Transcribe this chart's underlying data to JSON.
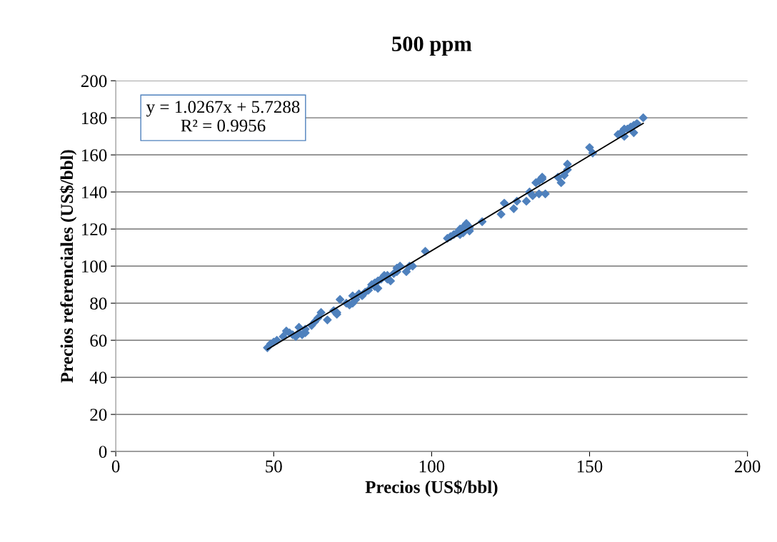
{
  "chart_data": {
    "type": "scatter",
    "title": "500 ppm",
    "xlabel": "Precios (US$/bbl)",
    "ylabel": "Precios referenciales (US$/bbl)",
    "xlim": [
      0,
      200
    ],
    "xticks": [
      0,
      50,
      100,
      150,
      200
    ],
    "ylim": [
      0,
      200
    ],
    "yticks": [
      0,
      20,
      40,
      60,
      80,
      100,
      120,
      140,
      160,
      180,
      200
    ],
    "grid": "y",
    "legend": false,
    "marker": "diamond",
    "annotations": [
      "y = 1.0267x + 5.7288\nR² = 0.9956"
    ],
    "series": [
      {
        "color": "#4f81bd",
        "x": [
          48,
          49,
          50,
          51,
          53,
          54,
          55,
          56,
          57,
          58,
          58,
          59,
          60,
          60,
          62,
          63,
          64,
          65,
          67,
          69,
          70,
          70,
          71,
          73,
          74,
          75,
          75,
          76,
          77,
          78,
          79,
          80,
          81,
          82,
          82,
          83,
          83,
          84,
          85,
          86,
          86,
          87,
          88,
          89,
          89,
          90,
          92,
          93,
          94,
          98,
          105,
          106,
          107,
          108,
          109,
          109,
          110,
          110,
          111,
          112,
          112,
          116,
          122,
          123,
          126,
          127,
          130,
          131,
          132,
          133,
          134,
          134,
          135,
          135,
          136,
          140,
          141,
          142,
          143,
          143,
          150,
          151,
          159,
          160,
          161,
          161,
          162,
          163,
          164,
          164,
          165,
          167
        ],
        "values": [
          56,
          58,
          59,
          60,
          62,
          65,
          64,
          63,
          62,
          67,
          64,
          63,
          64,
          66,
          68,
          70,
          72,
          75,
          71,
          76,
          74,
          75,
          82,
          80,
          79,
          80,
          84,
          82,
          85,
          84,
          86,
          87,
          90,
          91,
          89,
          92,
          88,
          93,
          95,
          93,
          95,
          92,
          96,
          97,
          99,
          100,
          97,
          100,
          100,
          108,
          115,
          116,
          117,
          118,
          117,
          120,
          118,
          121,
          123,
          119,
          121,
          124,
          128,
          134,
          131,
          135,
          135,
          140,
          138,
          145,
          146,
          139,
          147,
          148,
          139,
          148,
          145,
          149,
          155,
          152,
          164,
          161,
          171,
          172,
          170,
          174,
          174,
          175,
          176,
          172,
          177,
          180
        ]
      },
      {
        "type": "line",
        "color": "#000000",
        "marker": "none",
        "x": [
          48,
          167
        ],
        "values": [
          55,
          177
        ]
      }
    ]
  }
}
